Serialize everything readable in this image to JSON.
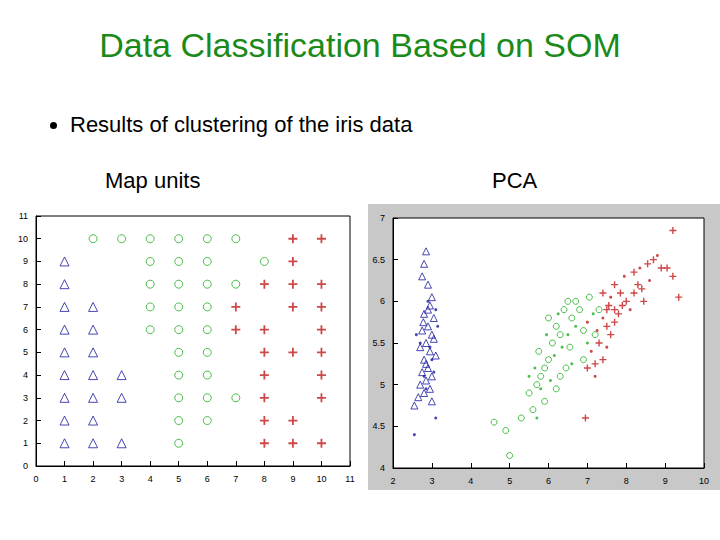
{
  "slide": {
    "title": "Data Classification Based on SOM",
    "bullet": "Results of clustering of the iris data"
  },
  "chart_data": [
    {
      "type": "scatter",
      "title": "Map units",
      "xlim": [
        0,
        11
      ],
      "ylim": [
        0,
        11
      ],
      "xticks": [
        0,
        1,
        2,
        3,
        4,
        5,
        6,
        7,
        8,
        9,
        10,
        11
      ],
      "yticks": [
        0,
        1,
        2,
        3,
        4,
        5,
        6,
        7,
        8,
        9,
        10,
        11
      ],
      "grid": false,
      "series": [
        {
          "color": "#1a1aa0",
          "marker": "triangle",
          "x": [
            1,
            1,
            1,
            2,
            1,
            2,
            1,
            2,
            1,
            2,
            3,
            1,
            2,
            3,
            1,
            2,
            1,
            2,
            3
          ],
          "y": [
            9,
            8,
            7,
            7,
            6,
            6,
            5,
            5,
            4,
            4,
            4,
            3,
            3,
            3,
            2,
            2,
            1,
            1,
            1
          ]
        },
        {
          "color": "#1fae1f",
          "marker": "circle",
          "x": [
            2,
            3,
            4,
            5,
            6,
            7,
            4,
            5,
            6,
            8,
            4,
            5,
            6,
            7,
            4,
            5,
            6,
            4,
            5,
            6,
            5,
            6,
            5,
            6,
            5,
            6,
            7,
            5,
            6,
            5
          ],
          "y": [
            10,
            10,
            10,
            10,
            10,
            10,
            9,
            9,
            9,
            9,
            8,
            8,
            8,
            8,
            7,
            7,
            7,
            6,
            6,
            6,
            5,
            5,
            4,
            4,
            3,
            3,
            3,
            2,
            2,
            1
          ]
        },
        {
          "color": "#c01a1a",
          "marker": "plus",
          "x": [
            9,
            10,
            9,
            8,
            9,
            10,
            7,
            9,
            10,
            7,
            8,
            10,
            8,
            9,
            10,
            8,
            10,
            8,
            10,
            8,
            9,
            8,
            9,
            10
          ],
          "y": [
            10,
            10,
            9,
            8,
            8,
            8,
            7,
            7,
            7,
            6,
            6,
            6,
            5,
            5,
            5,
            4,
            4,
            3,
            3,
            2,
            2,
            1,
            1,
            1
          ]
        }
      ]
    },
    {
      "type": "scatter",
      "title": "PCA",
      "xlim": [
        2,
        10
      ],
      "ylim": [
        4,
        7
      ],
      "xticks": [
        2,
        3,
        4,
        5,
        6,
        7,
        8,
        9,
        10
      ],
      "yticks": [
        4,
        4.5,
        5,
        5.5,
        6,
        6.5,
        7
      ],
      "grid": false,
      "series": [
        {
          "color": "#1a1aa0",
          "marker": "triangle",
          "x": [
            2.85,
            2.8,
            2.75,
            2.9,
            3.0,
            2.95,
            2.8,
            3.05,
            2.9,
            2.75,
            3.0,
            2.85,
            2.7,
            2.95,
            3.1,
            2.8,
            2.9,
            2.75,
            3.0,
            2.85,
            2.7,
            2.95,
            2.8,
            2.65,
            3.0,
            2.55,
            2.85,
            3.05,
            2.9,
            2.78
          ],
          "y": [
            6.6,
            6.45,
            6.3,
            6.2,
            6.05,
            5.95,
            5.85,
            5.8,
            5.7,
            5.65,
            5.6,
            5.5,
            5.45,
            5.4,
            5.35,
            5.3,
            5.2,
            5.15,
            5.1,
            5.05,
            5.0,
            4.95,
            4.9,
            4.85,
            4.8,
            4.75,
            5.25,
            5.55,
            5.9,
            5.75
          ]
        },
        {
          "color": "#1a1aa0",
          "marker": "dot",
          "x": [
            2.9,
            3.1,
            2.7,
            3.0,
            2.8,
            3.1,
            2.6,
            2.95,
            2.85,
            3.05,
            2.55,
            3.15
          ],
          "y": [
            6.0,
            5.9,
            5.5,
            5.3,
            5.1,
            4.6,
            5.6,
            5.45,
            4.95,
            5.15,
            4.4,
            5.7
          ]
        },
        {
          "color": "#1fae1f",
          "marker": "circle",
          "x": [
            4.6,
            4.9,
            5.0,
            5.3,
            5.5,
            5.6,
            5.7,
            5.8,
            5.9,
            6.0,
            5.75,
            6.1,
            6.2,
            6.3,
            6.0,
            6.4,
            6.5,
            6.7,
            6.8,
            7.05,
            6.6,
            6.9,
            7.2,
            6.45,
            6.2,
            6.9,
            7.3,
            5.9,
            6.3,
            6.55
          ],
          "y": [
            4.55,
            4.45,
            4.15,
            4.6,
            4.9,
            4.7,
            5.0,
            5.1,
            5.2,
            5.3,
            5.4,
            5.5,
            5.7,
            5.6,
            5.8,
            5.9,
            6.0,
            6.0,
            5.9,
            6.05,
            5.8,
            5.65,
            5.6,
            5.2,
            4.95,
            5.3,
            5.9,
            4.8,
            5.1,
            5.45
          ]
        },
        {
          "color": "#1fae1f",
          "marker": "dot",
          "x": [
            5.5,
            5.65,
            5.8,
            6.05,
            6.15,
            6.35,
            6.5,
            6.7,
            7.0,
            5.95,
            6.25,
            7.15,
            6.6,
            5.7
          ],
          "y": [
            5.1,
            5.2,
            4.95,
            5.05,
            5.35,
            5.45,
            5.6,
            5.7,
            5.5,
            5.6,
            5.85,
            5.85,
            5.25,
            4.6
          ]
        },
        {
          "color": "#c01a1a",
          "marker": "plus",
          "x": [
            7.0,
            7.2,
            7.4,
            7.3,
            7.5,
            7.6,
            7.7,
            7.8,
            7.9,
            7.55,
            7.7,
            7.85,
            8.0,
            8.2,
            8.3,
            8.4,
            8.2,
            8.55,
            8.7,
            8.9,
            7.4,
            7.5,
            8.45,
            9.2,
            9.35,
            9.05,
            6.95,
            9.2,
            7.7
          ],
          "y": [
            5.2,
            5.25,
            5.3,
            5.5,
            5.7,
            5.6,
            5.75,
            5.85,
            5.95,
            5.95,
            5.9,
            6.1,
            6.0,
            6.1,
            6.2,
            6.15,
            6.35,
            6.45,
            6.5,
            6.4,
            6.1,
            5.9,
            6.0,
            6.3,
            6.05,
            6.4,
            4.6,
            6.85,
            6.2
          ]
        },
        {
          "color": "#c01a1a",
          "marker": "dot",
          "x": [
            7.1,
            7.25,
            7.4,
            7.6,
            7.95,
            8.1,
            8.35,
            8.6,
            7.2,
            7.5,
            8.8,
            7.0
          ],
          "y": [
            5.4,
            5.65,
            5.8,
            6.05,
            6.3,
            5.9,
            6.4,
            6.25,
            5.1,
            5.45,
            6.55,
            5.75
          ]
        }
      ]
    }
  ]
}
